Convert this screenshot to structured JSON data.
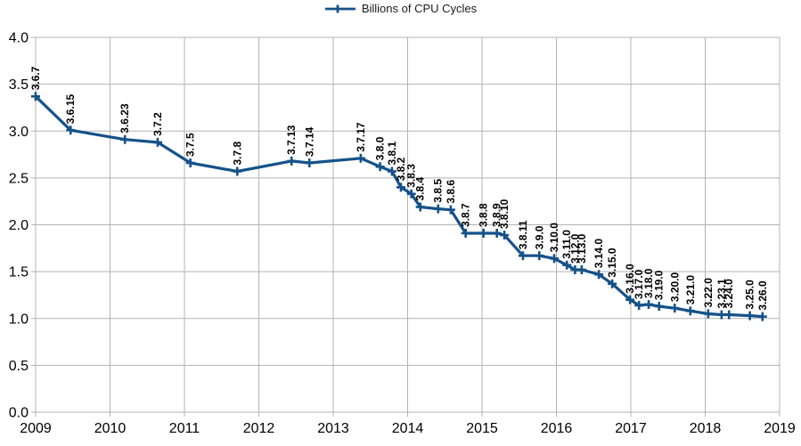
{
  "legend": {
    "series_label": "Billions of CPU Cycles"
  },
  "colors": {
    "series": "#155289",
    "grid": "#b3b3b3",
    "axis": "#b3b3b3",
    "text": "#000000",
    "label": "#000000",
    "background": "#ffffff"
  },
  "chart_data": {
    "type": "line",
    "title": "",
    "legend_entries": [
      "Billions of CPU Cycles"
    ],
    "legend_position": "top-center",
    "marker": "plus",
    "grid": true,
    "xlabel": "",
    "ylabel": "",
    "x_axis": {
      "min": 2009,
      "max": 2019,
      "ticks": [
        {
          "value": 2009,
          "label": "2009"
        },
        {
          "value": 2010,
          "label": "2010"
        },
        {
          "value": 2011,
          "label": "2011"
        },
        {
          "value": 2012,
          "label": "2012"
        },
        {
          "value": 2013,
          "label": "2013"
        },
        {
          "value": 2014,
          "label": "2014"
        },
        {
          "value": 2015,
          "label": "2015"
        },
        {
          "value": 2016,
          "label": "2016"
        },
        {
          "value": 2017,
          "label": "2017"
        },
        {
          "value": 2018,
          "label": "2018"
        },
        {
          "value": 2019,
          "label": "2019"
        }
      ]
    },
    "y_axis": {
      "min": 0.0,
      "max": 4.0,
      "step": 0.5,
      "ticks": [
        {
          "value": 0.0,
          "label": "0.0"
        },
        {
          "value": 0.5,
          "label": "0.5"
        },
        {
          "value": 1.0,
          "label": "1.0"
        },
        {
          "value": 1.5,
          "label": "1.5"
        },
        {
          "value": 2.0,
          "label": "2.0"
        },
        {
          "value": 2.5,
          "label": "2.5"
        },
        {
          "value": 3.0,
          "label": "3.0"
        },
        {
          "value": 3.5,
          "label": "3.5"
        },
        {
          "value": 4.0,
          "label": "4.0"
        }
      ]
    },
    "series": [
      {
        "name": "Billions of CPU Cycles",
        "points": [
          {
            "version": "3.6.7",
            "x": 2009.0,
            "y": 3.37
          },
          {
            "version": "3.6.15",
            "x": 2009.47,
            "y": 3.01
          },
          {
            "version": "3.6.23",
            "x": 2010.2,
            "y": 2.91
          },
          {
            "version": "3.7.2",
            "x": 2010.64,
            "y": 2.88
          },
          {
            "version": "3.7.5",
            "x": 2011.08,
            "y": 2.66
          },
          {
            "version": "3.7.8",
            "x": 2011.71,
            "y": 2.57
          },
          {
            "version": "3.7.13",
            "x": 2012.44,
            "y": 2.68
          },
          {
            "version": "3.7.14",
            "x": 2012.68,
            "y": 2.66
          },
          {
            "version": "3.7.17",
            "x": 2013.37,
            "y": 2.71
          },
          {
            "version": "3.8.0",
            "x": 2013.63,
            "y": 2.62
          },
          {
            "version": "3.8.1",
            "x": 2013.79,
            "y": 2.57
          },
          {
            "version": "3.8.2",
            "x": 2013.91,
            "y": 2.4
          },
          {
            "version": "3.8.3",
            "x": 2014.05,
            "y": 2.33
          },
          {
            "version": "3.8.4",
            "x": 2014.17,
            "y": 2.19
          },
          {
            "version": "3.8.5",
            "x": 2014.41,
            "y": 2.17
          },
          {
            "version": "3.8.6",
            "x": 2014.58,
            "y": 2.16
          },
          {
            "version": "3.8.7",
            "x": 2014.78,
            "y": 1.91
          },
          {
            "version": "3.8.8",
            "x": 2015.02,
            "y": 1.91
          },
          {
            "version": "3.8.9",
            "x": 2015.2,
            "y": 1.91
          },
          {
            "version": "3.8.10",
            "x": 2015.3,
            "y": 1.89
          },
          {
            "version": "3.8.11",
            "x": 2015.55,
            "y": 1.67
          },
          {
            "version": "3.9.0",
            "x": 2015.77,
            "y": 1.67
          },
          {
            "version": "3.10.0",
            "x": 2015.97,
            "y": 1.64
          },
          {
            "version": "3.11.0",
            "x": 2016.14,
            "y": 1.57
          },
          {
            "version": "3.12.0",
            "x": 2016.25,
            "y": 1.52
          },
          {
            "version": "3.13.0",
            "x": 2016.34,
            "y": 1.52
          },
          {
            "version": "3.14.0",
            "x": 2016.57,
            "y": 1.47
          },
          {
            "version": "3.15.0",
            "x": 2016.75,
            "y": 1.37
          },
          {
            "version": "3.16.0",
            "x": 2016.99,
            "y": 1.2
          },
          {
            "version": "3.17.0",
            "x": 2017.11,
            "y": 1.14
          },
          {
            "version": "3.18.0",
            "x": 2017.24,
            "y": 1.15
          },
          {
            "version": "3.19.0",
            "x": 2017.38,
            "y": 1.13
          },
          {
            "version": "3.20.0",
            "x": 2017.59,
            "y": 1.11
          },
          {
            "version": "3.21.0",
            "x": 2017.8,
            "y": 1.08
          },
          {
            "version": "3.22.0",
            "x": 2018.04,
            "y": 1.05
          },
          {
            "version": "3.23.1",
            "x": 2018.22,
            "y": 1.04
          },
          {
            "version": "3.24.0",
            "x": 2018.32,
            "y": 1.04
          },
          {
            "version": "3.25.0",
            "x": 2018.6,
            "y": 1.03
          },
          {
            "version": "3.26.0",
            "x": 2018.77,
            "y": 1.02
          }
        ]
      }
    ]
  }
}
